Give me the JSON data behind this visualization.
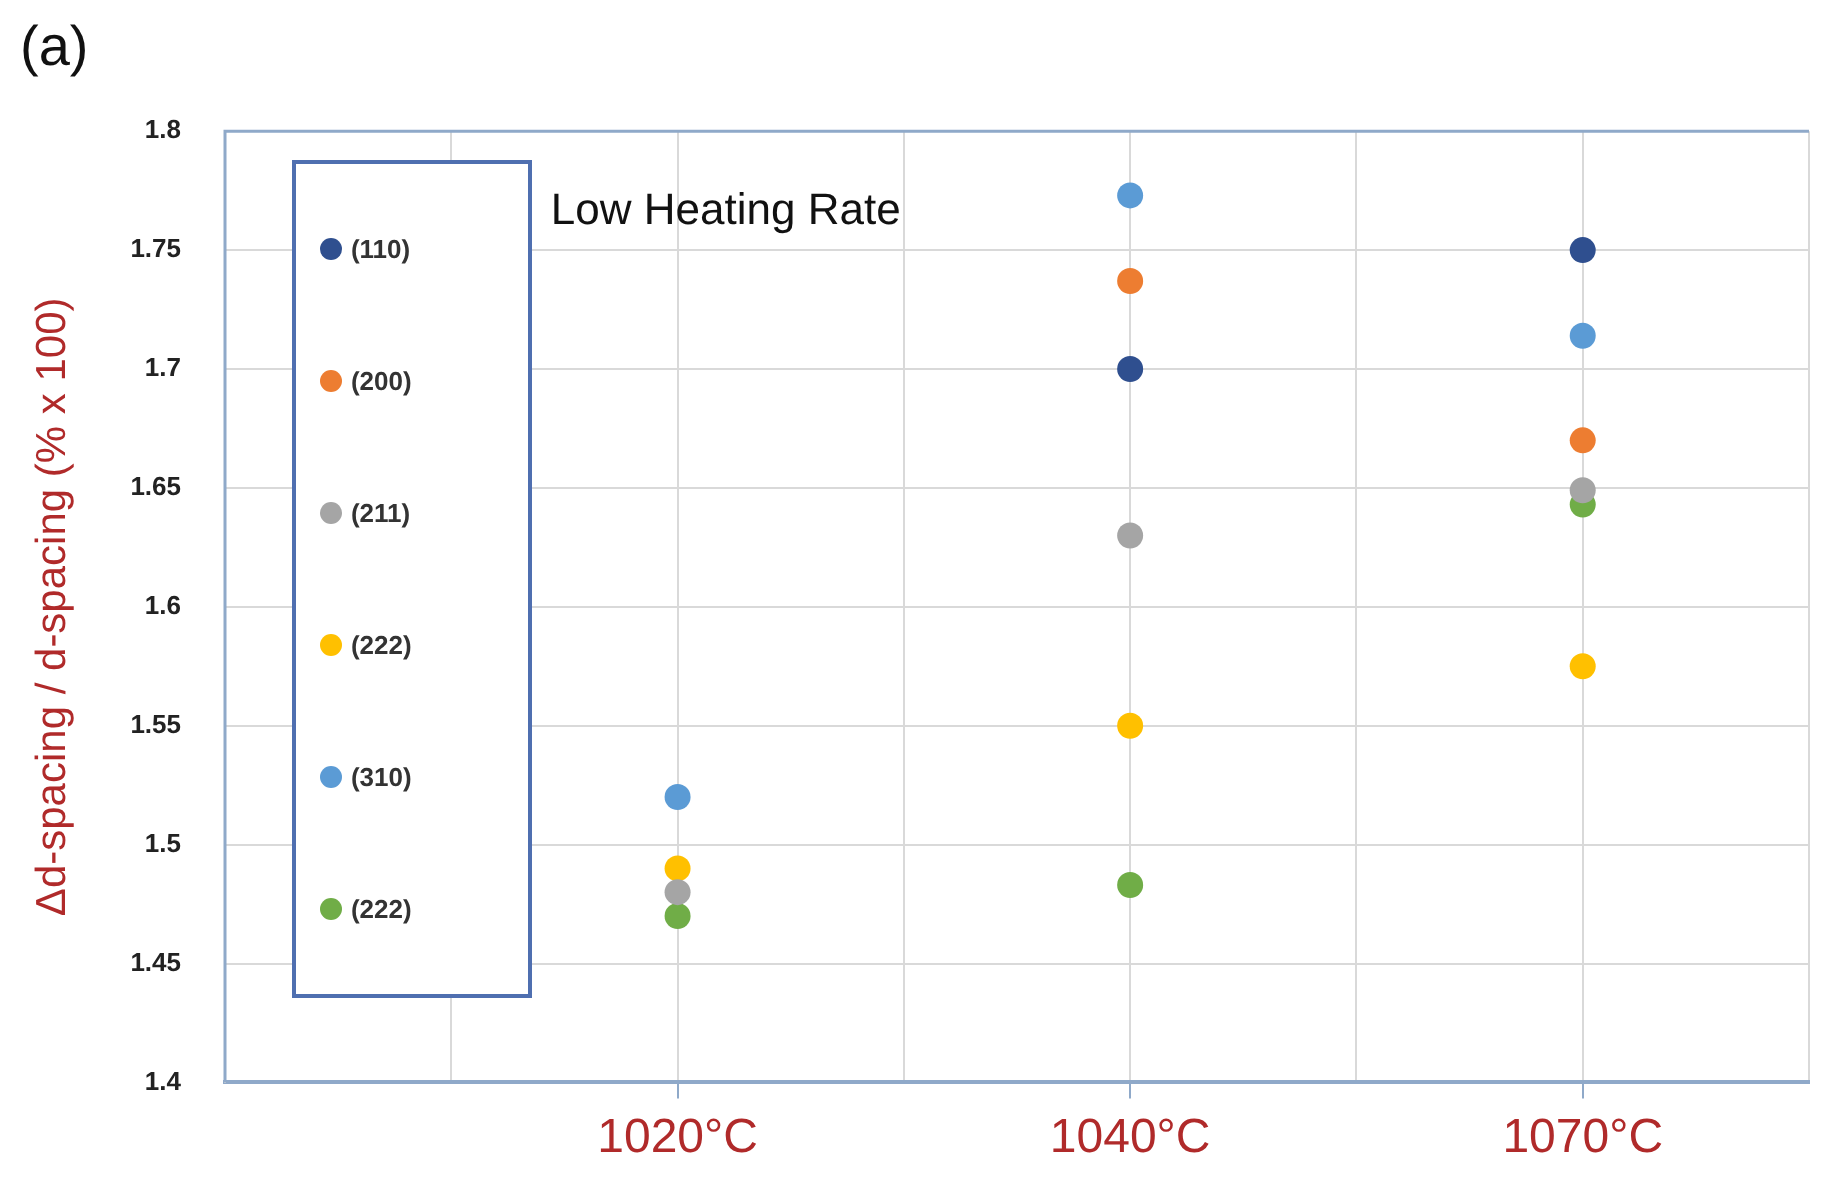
{
  "chart_data": {
    "type": "scatter",
    "title": "(a)",
    "ylabel": "Δd-spacing / d-spacing (% x 100)",
    "categories": [
      "1020°C",
      "1040°C",
      "1070°C"
    ],
    "series": [
      {
        "name": "(110)",
        "color": "#2f4f8f",
        "values": [
          null,
          1.7,
          1.75
        ]
      },
      {
        "name": "(200)",
        "color": "#ed7d31",
        "values": [
          null,
          1.737,
          1.67
        ]
      },
      {
        "name": "(211)",
        "color": "#a5a5a5",
        "values": [
          1.48,
          1.63,
          1.649
        ]
      },
      {
        "name": "(222)",
        "color": "#ffc000",
        "values": [
          1.49,
          1.55,
          1.575
        ]
      },
      {
        "name": "(310)",
        "color": "#5b9bd5",
        "values": [
          1.52,
          1.773,
          1.714
        ]
      },
      {
        "name": "(222)",
        "color": "#70ad47",
        "values": [
          1.47,
          1.483,
          1.643
        ]
      }
    ],
    "ylim": [
      1.4,
      1.8
    ],
    "yticks": [
      1.4,
      1.45,
      1.5,
      1.55,
      1.6,
      1.65,
      1.7,
      1.75,
      1.8
    ],
    "annotations": [
      "Low Heating Rate"
    ],
    "grid": true,
    "legend": "top left",
    "marker": "circle"
  }
}
